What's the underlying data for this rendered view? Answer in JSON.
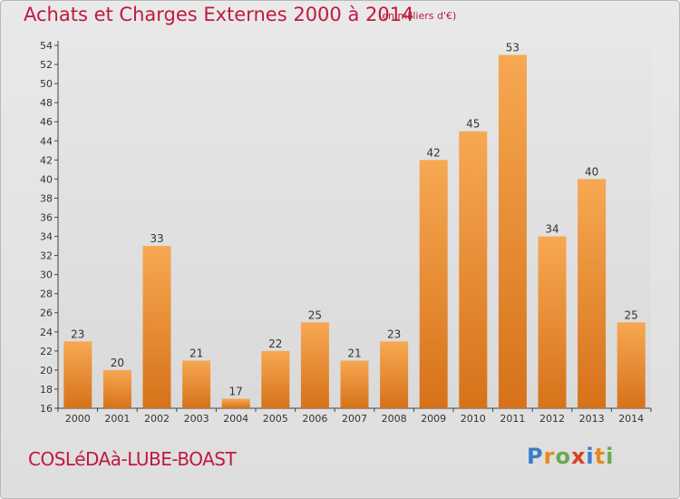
{
  "header": {
    "title": "Achats et Charges Externes 2000 à 2014",
    "unit": "(en milliers d'€)"
  },
  "footer": {
    "commune": "COSLéDAà-LUBE-BOAST",
    "logo_letters": [
      "P",
      "r",
      "o",
      "x",
      "i",
      "t",
      "i"
    ]
  },
  "colors": {
    "title": "#c0193f",
    "bar_light": "#f6a650",
    "bar_dark": "#d8741c",
    "background": "#e4e4e4"
  },
  "chart_data": {
    "type": "bar",
    "title": "Achats et Charges Externes 2000 à 2014",
    "subtitle": "(en milliers d'€)",
    "xlabel": "",
    "ylabel": "",
    "categories": [
      "2000",
      "2001",
      "2002",
      "2003",
      "2004",
      "2005",
      "2006",
      "2007",
      "2008",
      "2009",
      "2010",
      "2011",
      "2012",
      "2013",
      "2014"
    ],
    "values": [
      23,
      20,
      33,
      21,
      17,
      22,
      25,
      21,
      23,
      42,
      45,
      53,
      34,
      40,
      25
    ],
    "ylim": [
      16,
      54
    ],
    "yticks": [
      16,
      18,
      20,
      22,
      24,
      26,
      28,
      30,
      32,
      34,
      36,
      38,
      40,
      42,
      44,
      46,
      48,
      50,
      52,
      54
    ],
    "grid": false,
    "legend": "none",
    "data_labels": true
  }
}
